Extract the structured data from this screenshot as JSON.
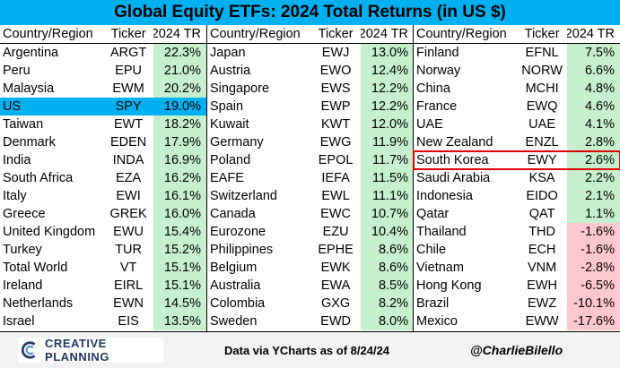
{
  "title": "Global Equity ETFs: 2024 Total Returns (in US $)",
  "headers": {
    "country": "Country/Region",
    "ticker": "Ticker",
    "tr": "2024 TR"
  },
  "chart_data": {
    "type": "table",
    "columns": [
      "Country/Region",
      "Ticker",
      "2024 TR"
    ],
    "panels": [
      {
        "rows": [
          {
            "country": "Argentina",
            "ticker": "ARGT",
            "tr": "22.3%",
            "value": 22.3
          },
          {
            "country": "Peru",
            "ticker": "EPU",
            "tr": "21.0%",
            "value": 21.0
          },
          {
            "country": "Malaysia",
            "ticker": "EWM",
            "tr": "20.2%",
            "value": 20.2
          },
          {
            "country": "US",
            "ticker": "SPY",
            "tr": "19.0%",
            "value": 19.0,
            "highlight": true
          },
          {
            "country": "Taiwan",
            "ticker": "EWT",
            "tr": "18.2%",
            "value": 18.2
          },
          {
            "country": "Denmark",
            "ticker": "EDEN",
            "tr": "17.9%",
            "value": 17.9
          },
          {
            "country": "India",
            "ticker": "INDA",
            "tr": "16.9%",
            "value": 16.9
          },
          {
            "country": "South Africa",
            "ticker": "EZA",
            "tr": "16.2%",
            "value": 16.2
          },
          {
            "country": "Italy",
            "ticker": "EWI",
            "tr": "16.1%",
            "value": 16.1
          },
          {
            "country": "Greece",
            "ticker": "GREK",
            "tr": "16.0%",
            "value": 16.0
          },
          {
            "country": "United Kingdom",
            "ticker": "EWU",
            "tr": "15.4%",
            "value": 15.4
          },
          {
            "country": "Turkey",
            "ticker": "TUR",
            "tr": "15.2%",
            "value": 15.2
          },
          {
            "country": "Total World",
            "ticker": "VT",
            "tr": "15.1%",
            "value": 15.1
          },
          {
            "country": "Ireland",
            "ticker": "EIRL",
            "tr": "15.1%",
            "value": 15.1
          },
          {
            "country": "Netherlands",
            "ticker": "EWN",
            "tr": "14.5%",
            "value": 14.5
          },
          {
            "country": "Israel",
            "ticker": "EIS",
            "tr": "13.5%",
            "value": 13.5
          }
        ]
      },
      {
        "rows": [
          {
            "country": "Japan",
            "ticker": "EWJ",
            "tr": "13.0%",
            "value": 13.0
          },
          {
            "country": "Austria",
            "ticker": "EWO",
            "tr": "12.4%",
            "value": 12.4
          },
          {
            "country": "Singapore",
            "ticker": "EWS",
            "tr": "12.2%",
            "value": 12.2
          },
          {
            "country": "Spain",
            "ticker": "EWP",
            "tr": "12.2%",
            "value": 12.2
          },
          {
            "country": "Kuwait",
            "ticker": "KWT",
            "tr": "12.0%",
            "value": 12.0
          },
          {
            "country": "Germany",
            "ticker": "EWG",
            "tr": "11.9%",
            "value": 11.9
          },
          {
            "country": "Poland",
            "ticker": "EPOL",
            "tr": "11.7%",
            "value": 11.7
          },
          {
            "country": "EAFE",
            "ticker": "IEFA",
            "tr": "11.5%",
            "value": 11.5
          },
          {
            "country": "Switzerland",
            "ticker": "EWL",
            "tr": "11.1%",
            "value": 11.1
          },
          {
            "country": "Canada",
            "ticker": "EWC",
            "tr": "10.7%",
            "value": 10.7
          },
          {
            "country": "Eurozone",
            "ticker": "EZU",
            "tr": "10.4%",
            "value": 10.4
          },
          {
            "country": "Philippines",
            "ticker": "EPHE",
            "tr": "8.6%",
            "value": 8.6
          },
          {
            "country": "Belgium",
            "ticker": "EWK",
            "tr": "8.6%",
            "value": 8.6
          },
          {
            "country": "Australia",
            "ticker": "EWA",
            "tr": "8.5%",
            "value": 8.5
          },
          {
            "country": "Colombia",
            "ticker": "GXG",
            "tr": "8.2%",
            "value": 8.2
          },
          {
            "country": "Sweden",
            "ticker": "EWD",
            "tr": "8.0%",
            "value": 8.0
          }
        ]
      },
      {
        "rows": [
          {
            "country": "Finland",
            "ticker": "EFNL",
            "tr": "7.5%",
            "value": 7.5
          },
          {
            "country": "Norway",
            "ticker": "NORW",
            "tr": "6.6%",
            "value": 6.6
          },
          {
            "country": "China",
            "ticker": "MCHI",
            "tr": "4.8%",
            "value": 4.8
          },
          {
            "country": "France",
            "ticker": "EWQ",
            "tr": "4.6%",
            "value": 4.6
          },
          {
            "country": "UAE",
            "ticker": "UAE",
            "tr": "4.1%",
            "value": 4.1
          },
          {
            "country": "New Zealand",
            "ticker": "ENZL",
            "tr": "2.8%",
            "value": 2.8
          },
          {
            "country": "South Korea",
            "ticker": "EWY",
            "tr": "2.6%",
            "value": 2.6,
            "boxed": true
          },
          {
            "country": "Saudi Arabia",
            "ticker": "KSA",
            "tr": "2.2%",
            "value": 2.2
          },
          {
            "country": "Indonesia",
            "ticker": "EIDO",
            "tr": "2.1%",
            "value": 2.1
          },
          {
            "country": "Qatar",
            "ticker": "QAT",
            "tr": "1.1%",
            "value": 1.1
          },
          {
            "country": "Thailand",
            "ticker": "THD",
            "tr": "-1.6%",
            "value": -1.6
          },
          {
            "country": "Chile",
            "ticker": "ECH",
            "tr": "-1.6%",
            "value": -1.6
          },
          {
            "country": "Vietnam",
            "ticker": "VNM",
            "tr": "-2.8%",
            "value": -2.8
          },
          {
            "country": "Hong Kong",
            "ticker": "EWH",
            "tr": "-6.5%",
            "value": -6.5
          },
          {
            "country": "Brazil",
            "ticker": "EWZ",
            "tr": "-10.1%",
            "value": -10.1
          },
          {
            "country": "Mexico",
            "ticker": "EWW",
            "tr": "-17.6%",
            "value": -17.6
          }
        ]
      }
    ]
  },
  "colors": {
    "title_bg": "#00b0f0",
    "us_highlight": "#00b0f0",
    "positive_fill": "#c6efce",
    "negative_fill": "#ffc7ce",
    "box_outline": "#e00000"
  },
  "footer": {
    "logo_text": "CREATIVE PLANNING",
    "source": "Data via YCharts as of 8/24/24",
    "handle": "@CharlieBilello"
  }
}
